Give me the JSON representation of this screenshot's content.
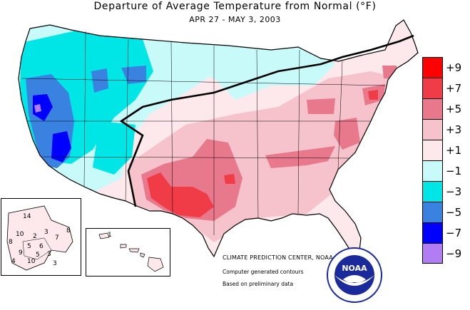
{
  "title": "Departure of Average Temperature from Normal (°F)",
  "subtitle": "APR 27 - MAY  3, 2003",
  "credit": {
    "line1": "CLIMATE PREDICTION CENTER, NOAA",
    "line2": "Computer generated contours",
    "line3": "Based on preliminary data"
  },
  "logo": {
    "text": "NOAA",
    "icon": "noaa-seal-icon"
  },
  "legend": [
    {
      "label": "+9",
      "color": "#ff0000"
    },
    {
      "label": "+7",
      "color": "#f03c46"
    },
    {
      "label": "+5",
      "color": "#e8788c"
    },
    {
      "label": "+3",
      "color": "#f6c2cc"
    },
    {
      "label": "+1",
      "color": "#fde8ec"
    },
    {
      "label": "−1",
      "color": "#c8fafa"
    },
    {
      "label": "−3",
      "color": "#00e6e6"
    },
    {
      "label": "−5",
      "color": "#3a82e0"
    },
    {
      "label": "−7",
      "color": "#0000ff"
    },
    {
      "label": "−9",
      "color": "#b27cf2"
    }
  ],
  "alaska_labels": [
    "14",
    "8",
    "10",
    "2",
    "3",
    "7",
    "5",
    "8",
    "6",
    "9",
    "3",
    "10",
    "5",
    "3",
    "4"
  ],
  "hawaii_labels": [
    "1"
  ]
}
